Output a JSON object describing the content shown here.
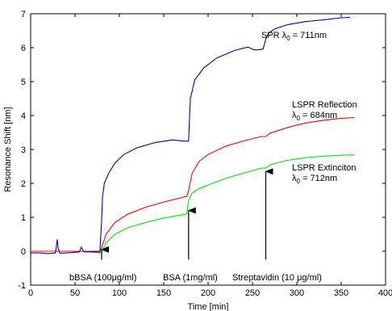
{
  "chart_data": {
    "type": "line",
    "xlabel": "Time [min]",
    "ylabel": "Resonance Shift [nm]",
    "xlim": [
      0,
      400
    ],
    "ylim": [
      -1,
      7
    ],
    "xticks": [
      "0",
      "50",
      "100",
      "150",
      "200",
      "250",
      "300",
      "350",
      "400"
    ],
    "yticks": [
      "-1",
      "0",
      "1",
      "2",
      "3",
      "4",
      "5",
      "6",
      "7"
    ],
    "grid": false,
    "series": [
      {
        "name": "SPR λ0 = 711nm",
        "color": "#0000cc",
        "x": [
          0,
          10,
          20,
          28,
          30,
          31,
          33,
          40,
          50,
          55,
          57,
          60,
          70,
          78,
          80,
          81,
          83,
          88,
          95,
          105,
          120,
          140,
          160,
          175,
          178,
          180,
          185,
          195,
          210,
          230,
          245,
          250,
          255,
          262,
          265,
          268,
          275,
          290,
          310,
          330,
          350,
          360
        ],
        "y": [
          -0.05,
          -0.05,
          -0.07,
          -0.05,
          0.35,
          0.08,
          -0.06,
          -0.05,
          -0.03,
          -0.02,
          0.12,
          -0.02,
          -0.02,
          -0.02,
          0.9,
          1.6,
          2.0,
          2.3,
          2.6,
          2.85,
          3.05,
          3.2,
          3.28,
          3.24,
          3.25,
          4.5,
          5.05,
          5.4,
          5.7,
          5.92,
          6.02,
          5.95,
          5.93,
          5.96,
          6.25,
          6.42,
          6.55,
          6.68,
          6.77,
          6.82,
          6.88,
          6.89
        ]
      },
      {
        "name": "LSPR Reflection λ0 = 684nm",
        "color": "#ff0000",
        "x": [
          0,
          30,
          60,
          78,
          80,
          85,
          95,
          110,
          130,
          150,
          170,
          176,
          178,
          182,
          190,
          200,
          220,
          240,
          260,
          265,
          270,
          290,
          310,
          330,
          350,
          365
        ],
        "y": [
          0,
          0,
          0,
          0,
          0.1,
          0.5,
          0.85,
          1.1,
          1.3,
          1.45,
          1.58,
          1.62,
          1.8,
          2.3,
          2.65,
          2.85,
          3.1,
          3.25,
          3.38,
          3.38,
          3.48,
          3.65,
          3.78,
          3.86,
          3.92,
          3.94
        ]
      },
      {
        "name": "LSPR Extinciton λ0 = 712nm",
        "color": "#00ee00",
        "x": [
          0,
          30,
          60,
          78,
          80,
          85,
          95,
          110,
          130,
          150,
          170,
          176,
          178,
          182,
          190,
          200,
          220,
          240,
          260,
          265,
          270,
          290,
          310,
          330,
          350,
          365
        ],
        "y": [
          0,
          0,
          0,
          -0.05,
          -0.03,
          0.25,
          0.5,
          0.7,
          0.85,
          0.98,
          1.07,
          1.1,
          1.5,
          1.72,
          1.85,
          1.95,
          2.15,
          2.3,
          2.45,
          2.45,
          2.55,
          2.68,
          2.76,
          2.8,
          2.83,
          2.84
        ]
      }
    ],
    "annotations": [
      {
        "text": "bBSA (100μg/ml)",
        "x": 80,
        "y_arrow_tip": 0.05,
        "y_arrow_tail": -0.25
      },
      {
        "text": "BSA (1mg/ml)",
        "x": 178,
        "y_arrow_tip": 1.2,
        "y_arrow_tail": -0.25
      },
      {
        "text": "Streptavidin (10 μg/ml)",
        "x": 265,
        "y_arrow_tip": 2.35,
        "y_arrow_tail": -0.25
      }
    ]
  },
  "labels": {
    "spr": "SPR λ0 = 711nm",
    "lspr_refl_1": "LSPR Reflection",
    "lspr_refl_2": "λ0 = 684nm",
    "lspr_ext_1": "LSPR Extinciton",
    "lspr_ext_2": "λ0 = 712nm",
    "bbsa": "bBSA (100μg/ml)",
    "bsa": "BSA (1mg/ml)",
    "strep": "Streptavidin (10 μg/ml)"
  }
}
